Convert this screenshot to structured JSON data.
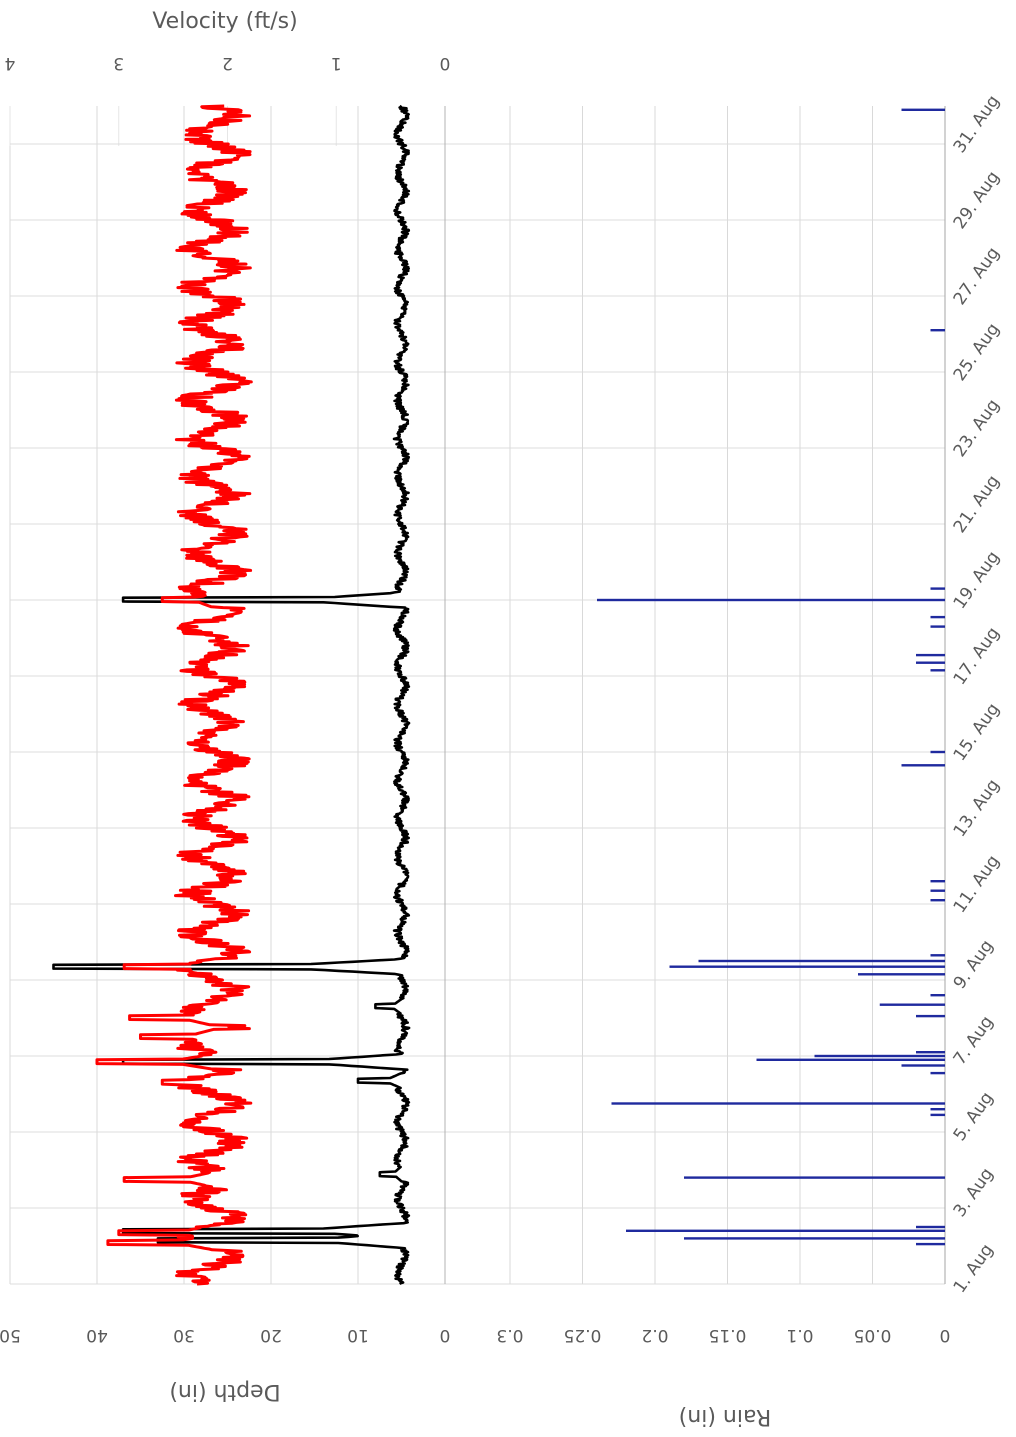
{
  "chart_data": [
    {
      "type": "line",
      "orientation": "rotated-90-clockwise",
      "x_axis": {
        "label": "",
        "ticks": [
          "1. Aug",
          "3. Aug",
          "5. Aug",
          "7. Aug",
          "9. Aug",
          "11. Aug",
          "13. Aug",
          "15. Aug",
          "17. Aug",
          "19. Aug",
          "21. Aug",
          "23. Aug",
          "25. Aug",
          "27. Aug",
          "29. Aug",
          "31. Aug"
        ],
        "range_days": [
          1,
          32
        ]
      },
      "depth_axis": {
        "label": "Depth (in)",
        "ticks": [
          "50",
          "40",
          "30",
          "20",
          "10",
          "0"
        ],
        "range": [
          0,
          50
        ]
      },
      "velocity_axis": {
        "label": "Velocity (ft/s)",
        "ticks": [
          "4",
          "3",
          "2",
          "1",
          "0"
        ],
        "range": [
          0,
          4
        ]
      },
      "grid": true,
      "series": [
        {
          "role": "depth",
          "color": "#000000",
          "baseline": 5,
          "spikes": [
            {
              "day": 2.15,
              "value": 33
            },
            {
              "day": 2.4,
              "value": 37
            },
            {
              "day": 3.9,
              "value": 7.5
            },
            {
              "day": 6.35,
              "value": 10
            },
            {
              "day": 6.85,
              "value": 37
            },
            {
              "day": 8.3,
              "value": 8
            },
            {
              "day": 9.35,
              "value": 45
            },
            {
              "day": 19.0,
              "value": 37
            }
          ]
        },
        {
          "role": "velocity",
          "color": "#ff0000",
          "baseline": 2.13,
          "spikes": [
            {
              "day": 2.1,
              "value": 3.1
            },
            {
              "day": 2.35,
              "value": 3.0
            },
            {
              "day": 3.75,
              "value": 2.95
            },
            {
              "day": 6.3,
              "value": 2.6
            },
            {
              "day": 6.85,
              "value": 3.2
            },
            {
              "day": 7.5,
              "value": 2.8
            },
            {
              "day": 8.0,
              "value": 2.9
            },
            {
              "day": 9.35,
              "value": 2.95
            },
            {
              "day": 19.0,
              "value": 2.6
            }
          ]
        }
      ]
    },
    {
      "type": "bar",
      "orientation": "rotated-90-clockwise",
      "color": "#1f2a9e",
      "rain_axis": {
        "label": "Rain (in)",
        "ticks": [
          "0.3",
          "0.25",
          "0.2",
          "0.15",
          "0.1",
          "0.05",
          "0"
        ],
        "range": [
          0,
          0.3
        ]
      },
      "grid": true,
      "bars": [
        {
          "day": 2.05,
          "value": 0.02
        },
        {
          "day": 2.2,
          "value": 0.18
        },
        {
          "day": 2.4,
          "value": 0.22
        },
        {
          "day": 2.5,
          "value": 0.02
        },
        {
          "day": 3.8,
          "value": 0.18
        },
        {
          "day": 5.45,
          "value": 0.01
        },
        {
          "day": 5.6,
          "value": 0.01
        },
        {
          "day": 5.75,
          "value": 0.23
        },
        {
          "day": 6.55,
          "value": 0.01
        },
        {
          "day": 6.75,
          "value": 0.03
        },
        {
          "day": 6.9,
          "value": 0.13
        },
        {
          "day": 7.0,
          "value": 0.09
        },
        {
          "day": 7.1,
          "value": 0.02
        },
        {
          "day": 8.05,
          "value": 0.02
        },
        {
          "day": 8.35,
          "value": 0.045
        },
        {
          "day": 8.6,
          "value": 0.01
        },
        {
          "day": 9.15,
          "value": 0.06
        },
        {
          "day": 9.35,
          "value": 0.19
        },
        {
          "day": 9.5,
          "value": 0.17
        },
        {
          "day": 9.65,
          "value": 0.01
        },
        {
          "day": 11.1,
          "value": 0.01
        },
        {
          "day": 11.35,
          "value": 0.01
        },
        {
          "day": 11.6,
          "value": 0.01
        },
        {
          "day": 14.65,
          "value": 0.03
        },
        {
          "day": 15.0,
          "value": 0.01
        },
        {
          "day": 17.15,
          "value": 0.01
        },
        {
          "day": 17.35,
          "value": 0.02
        },
        {
          "day": 17.55,
          "value": 0.02
        },
        {
          "day": 18.3,
          "value": 0.01
        },
        {
          "day": 18.55,
          "value": 0.01
        },
        {
          "day": 19.0,
          "value": 0.24
        },
        {
          "day": 19.3,
          "value": 0.01
        },
        {
          "day": 26.1,
          "value": 0.01
        },
        {
          "day": 31.9,
          "value": 0.03
        }
      ]
    }
  ]
}
